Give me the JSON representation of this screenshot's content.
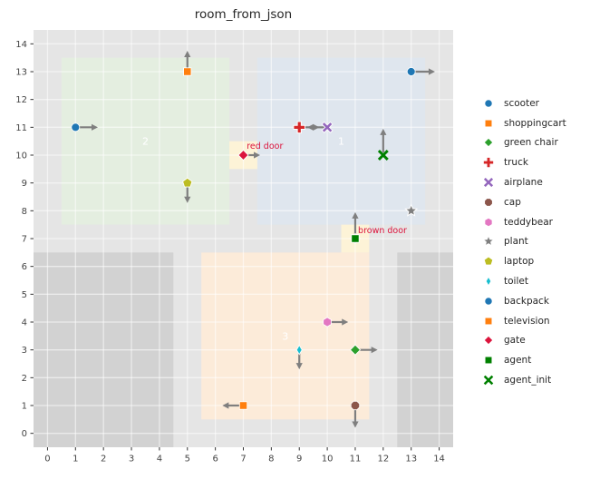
{
  "chart_data": {
    "type": "scatter",
    "title": "room_from_json",
    "xlim": [
      -0.5,
      14.5
    ],
    "ylim": [
      -0.5,
      14.5
    ],
    "xticks": [
      0,
      1,
      2,
      3,
      4,
      5,
      6,
      7,
      8,
      9,
      10,
      11,
      12,
      13,
      14
    ],
    "yticks": [
      0,
      1,
      2,
      3,
      4,
      5,
      6,
      7,
      8,
      9,
      10,
      11,
      12,
      13,
      14
    ],
    "grid": true,
    "legend_position": "right-outside",
    "colors": {
      "figure_bg": "#ffffff",
      "plot_bg": "#e5e5e5",
      "grid": "rgba(255,255,255,0.55)",
      "wall": "#d2d2d2",
      "door_fill": "#fdf3d7",
      "door_label": "#dc143c",
      "room_label": "#ffffff",
      "arrow": "#7f7f7f",
      "tick_label": "#444444",
      "title": "#262626"
    },
    "walls": [
      {
        "x0": -0.5,
        "y0": -0.5,
        "x1": 4.5,
        "y1": 6.5
      },
      {
        "x0": 12.5,
        "y0": -0.5,
        "x1": 14.5,
        "y1": 6.5
      }
    ],
    "rooms": [
      {
        "label": "2",
        "x0": 0.5,
        "y0": 7.5,
        "x1": 6.5,
        "y1": 13.5,
        "fill": "#e4eee0",
        "label_x": 3.5,
        "label_y": 10.5
      },
      {
        "label": "1",
        "x0": 7.5,
        "y0": 7.5,
        "x1": 13.5,
        "y1": 13.5,
        "fill": "#dfe6ee",
        "label_x": 10.5,
        "label_y": 10.5
      },
      {
        "label": "3",
        "x0": 5.5,
        "y0": 0.5,
        "x1": 11.5,
        "y1": 6.5,
        "fill": "#fcebd9",
        "label_x": 8.5,
        "label_y": 3.5
      }
    ],
    "doors": [
      {
        "name": "red door",
        "x0": 6.5,
        "y0": 9.5,
        "x1": 7.5,
        "y1": 10.5,
        "gate": {
          "x": 7,
          "y": 10,
          "marker": "diamond",
          "color": "#dc143c",
          "heading": [
            0.6,
            0
          ]
        },
        "label_x": 7.12,
        "label_y": 10.33
      },
      {
        "name": "brown door",
        "x0": 10.5,
        "y0": 6.5,
        "x1": 11.5,
        "y1": 7.5,
        "gate": {
          "x": 11,
          "y": 7,
          "marker": "diamond",
          "color": "#dc143c",
          "heading": null
        },
        "label_x": 11.1,
        "label_y": 7.3
      }
    ],
    "objects": [
      {
        "name": "scooter",
        "x": 1,
        "y": 11,
        "marker": "circle",
        "color": "#1f77b4",
        "heading": [
          0.8,
          0
        ]
      },
      {
        "name": "shoppingcart",
        "x": 5,
        "y": 13,
        "marker": "square",
        "color": "#ff7f0e",
        "heading": [
          0,
          0.75
        ]
      },
      {
        "name": "green chair",
        "x": 11,
        "y": 3,
        "marker": "diamond",
        "color": "#2ca02c",
        "heading": [
          0.8,
          0
        ]
      },
      {
        "name": "truck",
        "x": 9,
        "y": 11,
        "marker": "plus",
        "color": "#d62728",
        "heading": [
          0.72,
          0
        ]
      },
      {
        "name": "airplane",
        "x": 10,
        "y": 11,
        "marker": "x",
        "color": "#9467bd",
        "heading": [
          -0.72,
          0
        ]
      },
      {
        "name": "cap",
        "x": 11,
        "y": 1,
        "marker": "octagon",
        "color": "#8c564b",
        "heading": [
          0,
          -0.8
        ]
      },
      {
        "name": "teddybear",
        "x": 10,
        "y": 4,
        "marker": "hexagon",
        "color": "#e377c2",
        "heading": [
          0.75,
          0
        ]
      },
      {
        "name": "plant",
        "x": 13,
        "y": 8,
        "marker": "star",
        "color": "#7f7f7f",
        "heading": null
      },
      {
        "name": "laptop",
        "x": 5,
        "y": 9,
        "marker": "pentagon",
        "color": "#bcbd22",
        "heading": [
          0,
          -0.72
        ]
      },
      {
        "name": "toilet",
        "x": 9,
        "y": 3,
        "marker": "thin-diamond",
        "color": "#17becf",
        "heading": [
          0,
          -0.7
        ]
      },
      {
        "name": "backpack",
        "x": 13,
        "y": 13,
        "marker": "circle",
        "color": "#1f77b4",
        "heading": [
          0.85,
          0
        ]
      },
      {
        "name": "television",
        "x": 7,
        "y": 1,
        "marker": "square",
        "color": "#ff7f0e",
        "heading": [
          -0.75,
          0
        ]
      },
      {
        "name": "agent",
        "x": 11,
        "y": 7,
        "marker": "square",
        "color": "#008000",
        "heading": [
          0,
          0.95
        ]
      },
      {
        "name": "agent_init",
        "x": 12,
        "y": 10,
        "marker": "xmark",
        "color": "#008000",
        "heading": [
          0,
          0.95
        ]
      }
    ],
    "legend": [
      {
        "label": "scooter",
        "marker": "circle",
        "color": "#1f77b4"
      },
      {
        "label": "shoppingcart",
        "marker": "square",
        "color": "#ff7f0e"
      },
      {
        "label": "green chair",
        "marker": "diamond",
        "color": "#2ca02c"
      },
      {
        "label": "truck",
        "marker": "plus",
        "color": "#d62728"
      },
      {
        "label": "airplane",
        "marker": "x",
        "color": "#9467bd"
      },
      {
        "label": "cap",
        "marker": "octagon",
        "color": "#8c564b"
      },
      {
        "label": "teddybear",
        "marker": "hexagon",
        "color": "#e377c2"
      },
      {
        "label": "plant",
        "marker": "star",
        "color": "#7f7f7f"
      },
      {
        "label": "laptop",
        "marker": "pentagon",
        "color": "#bcbd22"
      },
      {
        "label": "toilet",
        "marker": "thin-diamond",
        "color": "#17becf"
      },
      {
        "label": "backpack",
        "marker": "circle",
        "color": "#1f77b4"
      },
      {
        "label": "television",
        "marker": "square",
        "color": "#ff7f0e"
      },
      {
        "label": "gate",
        "marker": "diamond",
        "color": "#dc143c"
      },
      {
        "label": "agent",
        "marker": "square",
        "color": "#008000"
      },
      {
        "label": "agent_init",
        "marker": "xmark",
        "color": "#008000"
      }
    ]
  }
}
